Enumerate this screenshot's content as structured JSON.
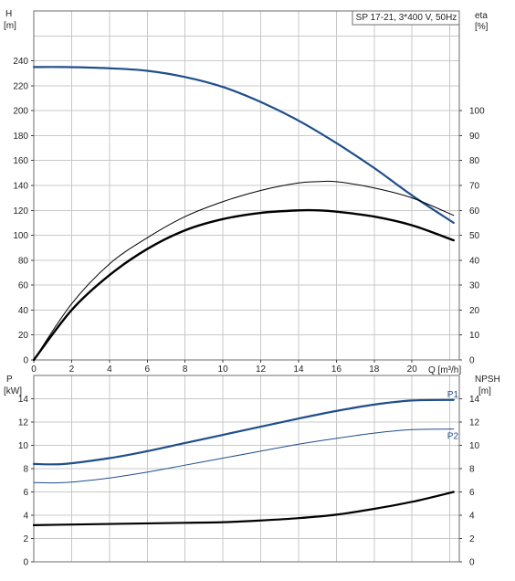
{
  "chart_data": [
    {
      "type": "line",
      "title": "SP 17-21, 3*400 V, 50Hz",
      "xlabel": "Q [m³/h]",
      "ylabel_left": [
        "H",
        "[m]"
      ],
      "ylabel_right": [
        "eta",
        "[%]"
      ],
      "x_ticks": [
        "0",
        "2",
        "4",
        "6",
        "8",
        "10",
        "12",
        "14",
        "16",
        "18",
        "20"
      ],
      "y_left_ticks": [
        "0",
        "20",
        "40",
        "60",
        "80",
        "100",
        "120",
        "140",
        "160",
        "180",
        "200",
        "220",
        "240"
      ],
      "y_right_ticks": [
        "0",
        "10",
        "20",
        "30",
        "40",
        "50",
        "60",
        "70",
        "80",
        "90",
        "100"
      ],
      "xlim": [
        0,
        22.5
      ],
      "ylim_left": [
        0,
        280
      ],
      "ylim_right": [
        0,
        140
      ],
      "grid": true,
      "series": [
        {
          "color": "#1f4e8c",
          "axis": "left",
          "points": [
            [
              0,
              235
            ],
            [
              1.6,
              235
            ],
            [
              4,
              234
            ],
            [
              6,
              232
            ],
            [
              8,
              227
            ],
            [
              10,
              219
            ],
            [
              12,
              207
            ],
            [
              14,
              192
            ],
            [
              16,
              174
            ],
            [
              18,
              154
            ],
            [
              20,
              132
            ],
            [
              22.2,
              110
            ]
          ]
        },
        {
          "color": "#000000",
          "axis": "right",
          "points": [
            [
              0,
              0
            ],
            [
              2,
              20
            ],
            [
              4,
              34
            ],
            [
              6,
              44.5
            ],
            [
              8,
              52
            ],
            [
              10,
              56.5
            ],
            [
              12,
              59
            ],
            [
              14,
              60
            ],
            [
              15,
              60
            ],
            [
              16,
              59.5
            ],
            [
              18,
              57.5
            ],
            [
              20,
              54
            ],
            [
              22.2,
              48
            ]
          ]
        },
        {
          "color": "#000000",
          "axis": "left",
          "points": [
            [
              0,
              0
            ],
            [
              2,
              45
            ],
            [
              4,
              77
            ],
            [
              6,
              98
            ],
            [
              8,
              115
            ],
            [
              10,
              127
            ],
            [
              12,
              136
            ],
            [
              14,
              142
            ],
            [
              15,
              143
            ],
            [
              16,
              143
            ],
            [
              18,
              138
            ],
            [
              20,
              130
            ],
            [
              22.2,
              116
            ]
          ]
        }
      ]
    },
    {
      "type": "line",
      "ylabel_left": [
        "P",
        "[kW]"
      ],
      "ylabel_right": [
        "NPSH",
        "[m]"
      ],
      "y_left_ticks": [
        "0",
        "2",
        "4",
        "6",
        "8",
        "10",
        "12",
        "14"
      ],
      "y_right_ticks": [
        "0",
        "2",
        "4",
        "6",
        "8",
        "10",
        "12",
        "14"
      ],
      "xlim": [
        0,
        22.5
      ],
      "ylim": [
        0,
        16
      ],
      "grid": true,
      "series": [
        {
          "name": "P1",
          "color": "#1f4e8c",
          "points": [
            [
              0,
              8.4
            ],
            [
              1.6,
              8.4
            ],
            [
              4,
              8.9
            ],
            [
              6,
              9.5
            ],
            [
              8,
              10.2
            ],
            [
              10,
              10.9
            ],
            [
              12,
              11.6
            ],
            [
              14,
              12.3
            ],
            [
              16,
              12.95
            ],
            [
              18,
              13.5
            ],
            [
              20,
              13.85
            ],
            [
              22.2,
              13.9
            ]
          ]
        },
        {
          "name": "P2",
          "color": "#1f4e8c",
          "points": [
            [
              0,
              6.8
            ],
            [
              1.6,
              6.8
            ],
            [
              4,
              7.2
            ],
            [
              6,
              7.7
            ],
            [
              8,
              8.3
            ],
            [
              10,
              8.9
            ],
            [
              12,
              9.5
            ],
            [
              14,
              10.1
            ],
            [
              16,
              10.6
            ],
            [
              18,
              11.05
            ],
            [
              20,
              11.35
            ],
            [
              22.2,
              11.4
            ]
          ]
        },
        {
          "color": "#000000",
          "points": [
            [
              0,
              3.15
            ],
            [
              2,
              3.2
            ],
            [
              4,
              3.25
            ],
            [
              6,
              3.3
            ],
            [
              8,
              3.35
            ],
            [
              10,
              3.4
            ],
            [
              12,
              3.55
            ],
            [
              14,
              3.75
            ],
            [
              16,
              4.05
            ],
            [
              18,
              4.55
            ],
            [
              20,
              5.15
            ],
            [
              22.2,
              6.0
            ]
          ]
        }
      ]
    }
  ]
}
